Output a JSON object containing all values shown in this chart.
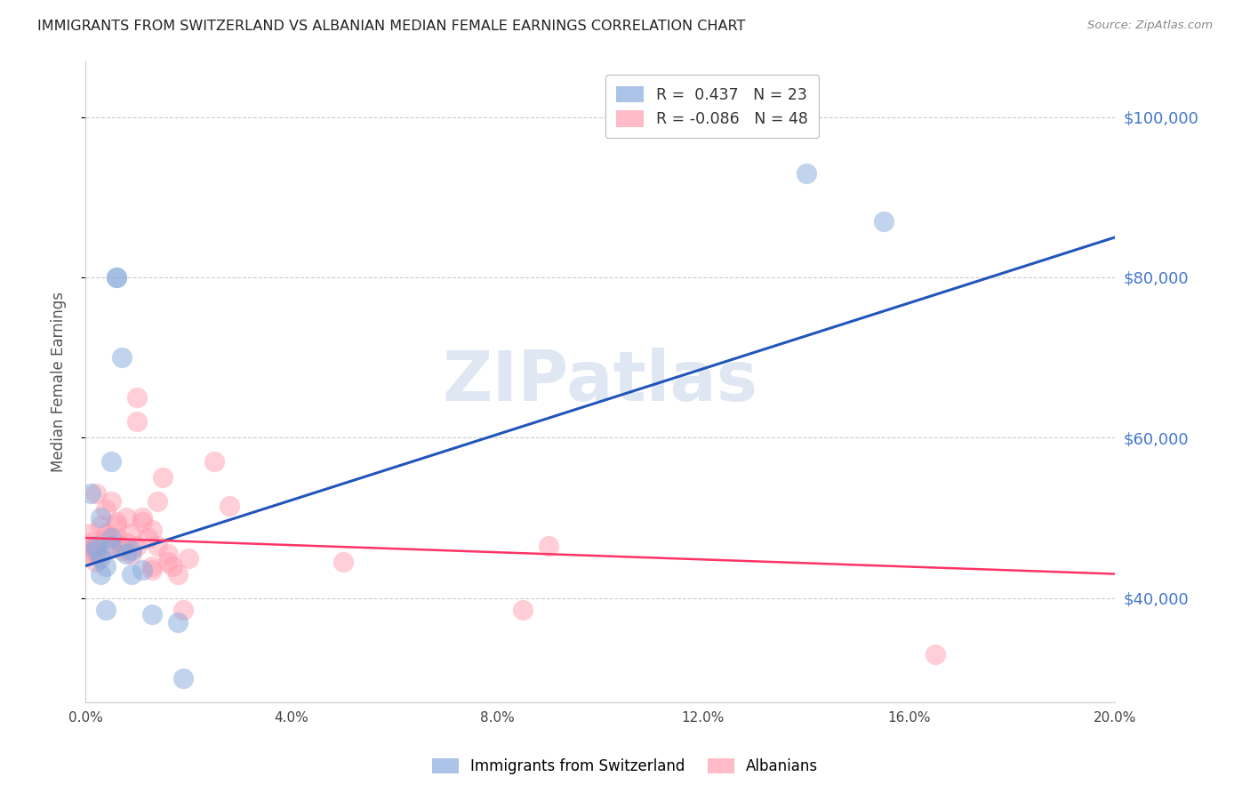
{
  "title": "IMMIGRANTS FROM SWITZERLAND VS ALBANIAN MEDIAN FEMALE EARNINGS CORRELATION CHART",
  "source": "Source: ZipAtlas.com",
  "ylabel": "Median Female Earnings",
  "xlim": [
    0.0,
    0.2
  ],
  "ylim": [
    27000,
    107000
  ],
  "yticks": [
    40000,
    60000,
    80000,
    100000
  ],
  "ytick_labels": [
    "$40,000",
    "$60,000",
    "$80,000",
    "$100,000"
  ],
  "xticks": [
    0.0,
    0.04,
    0.08,
    0.12,
    0.16,
    0.2
  ],
  "xtick_labels": [
    "0.0%",
    "4.0%",
    "8.0%",
    "12.0%",
    "16.0%",
    "20.0%"
  ],
  "watermark": "ZIPatlas",
  "swiss_color": "#87AADD",
  "albanian_color": "#FF9EB0",
  "swiss_line_color": "#2255BB",
  "albanian_line_color": "#FF3366",
  "swiss_legend_label": "Immigrants from Switzerland",
  "albanian_legend_label": "Albanians",
  "swiss_points_x": [
    0.001,
    0.002,
    0.002,
    0.003,
    0.003,
    0.003,
    0.004,
    0.004,
    0.005,
    0.005,
    0.005,
    0.006,
    0.006,
    0.007,
    0.008,
    0.009,
    0.009,
    0.011,
    0.013,
    0.018,
    0.019,
    0.14,
    0.155
  ],
  "swiss_points_y": [
    53000,
    46000,
    46500,
    43000,
    50000,
    45000,
    44000,
    38500,
    57000,
    47500,
    46500,
    80000,
    80000,
    70000,
    45500,
    46000,
    43000,
    43500,
    38000,
    37000,
    30000,
    93000,
    87000
  ],
  "albanian_points_x": [
    0.001,
    0.001,
    0.001,
    0.001,
    0.001,
    0.002,
    0.002,
    0.002,
    0.003,
    0.003,
    0.004,
    0.004,
    0.004,
    0.005,
    0.005,
    0.006,
    0.006,
    0.006,
    0.007,
    0.007,
    0.008,
    0.008,
    0.009,
    0.009,
    0.01,
    0.01,
    0.01,
    0.011,
    0.011,
    0.012,
    0.013,
    0.013,
    0.013,
    0.014,
    0.014,
    0.015,
    0.016,
    0.016,
    0.017,
    0.018,
    0.019,
    0.02,
    0.025,
    0.028,
    0.05,
    0.085,
    0.09,
    0.165
  ],
  "albanian_points_y": [
    46000,
    47000,
    48000,
    46500,
    45500,
    53000,
    45500,
    44500,
    49000,
    45500,
    51000,
    47500,
    48000,
    52000,
    46500,
    49500,
    47500,
    49000,
    46000,
    46500,
    50000,
    47000,
    45500,
    48000,
    65000,
    62000,
    46500,
    50000,
    49500,
    47500,
    48500,
    43500,
    44000,
    52000,
    46500,
    55000,
    44500,
    45500,
    44000,
    43000,
    38500,
    45000,
    57000,
    51500,
    44500,
    38500,
    46500,
    33000
  ],
  "swiss_line_x": [
    0.0,
    0.2
  ],
  "swiss_line_y": [
    44000,
    85000
  ],
  "albanian_line_x": [
    0.0,
    0.2
  ],
  "albanian_line_y": [
    47500,
    43000
  ],
  "background_color": "#FFFFFF",
  "grid_color": "#CCCCCC",
  "title_color": "#222222",
  "axis_label_color": "#555555",
  "tick_label_color_right": "#4477CC",
  "tick_label_color_bottom": "#444444"
}
